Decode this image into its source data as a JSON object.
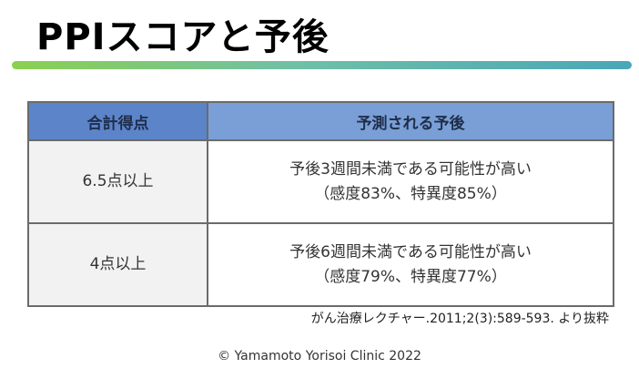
{
  "slide": {
    "title": "PPIスコアと予後",
    "table": {
      "headers": [
        "合計得点",
        "予測される予後"
      ],
      "rows": [
        {
          "score": "6.5点以上",
          "prognosis_line1": "予後3週間未満である可能性が高い",
          "prognosis_line2": "（感度83%、特異度85%）"
        },
        {
          "score": "4点以上",
          "prognosis_line1": "予後6週間未満である可能性が高い",
          "prognosis_line2": "（感度79%、特異度77%）"
        }
      ]
    },
    "source": "がん治療レクチャー.2011;2(3):589-593. より抜粋",
    "copyright": "© Yamamoto Yorisoi Clinic 2022"
  },
  "colors": {
    "header_primary": "#5b84c9",
    "header_secondary": "#7a9fd6",
    "bar_start": "#8cd04e",
    "bar_end": "#4aa7b8"
  }
}
